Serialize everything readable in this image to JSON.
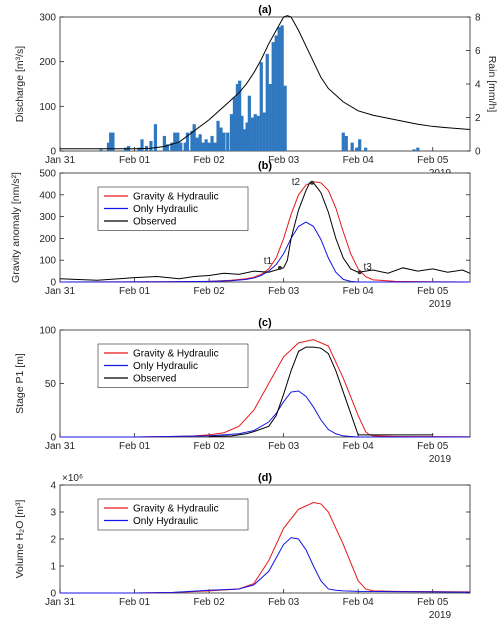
{
  "chart_data": [
    {
      "type": "bar+line",
      "title": "(a)",
      "ylabel": "Discharge [m³/s]",
      "ylabel_right": "Rain [mm/h]",
      "ylim": [
        0,
        300
      ],
      "ylim_right": [
        0,
        8
      ],
      "yticks": [
        0,
        100,
        200,
        300
      ],
      "yticks_right": [
        0,
        2,
        4,
        6,
        8
      ],
      "xlim": [
        0,
        5.5
      ],
      "xtick_labels": [
        "Jan 31",
        "Feb 01",
        "Feb 02",
        "Feb 03",
        "Feb 04",
        "Feb 05"
      ],
      "year_label": "2019",
      "bars_color": "#2f78c0",
      "line_color": "#000000",
      "rain_bars": {
        "x": [
          0.55,
          0.65,
          0.68,
          0.71,
          0.88,
          0.92,
          1.06,
          1.1,
          1.16,
          1.22,
          1.28,
          1.4,
          1.44,
          1.5,
          1.54,
          1.58,
          1.62,
          1.68,
          1.71,
          1.77,
          1.8,
          1.84,
          1.88,
          1.92,
          1.96,
          2.0,
          2.04,
          2.08,
          2.12,
          2.16,
          2.2,
          2.25,
          2.3,
          2.34,
          2.38,
          2.41,
          2.44,
          2.48,
          2.51,
          2.54,
          2.58,
          2.62,
          2.66,
          2.7,
          2.74,
          2.78,
          2.82,
          2.86,
          2.9,
          2.94,
          2.98,
          3.02,
          3.8,
          3.84,
          3.92,
          3.98,
          4.02,
          4.1,
          4.75,
          4.8
        ],
        "values": [
          0.1,
          0.5,
          1.1,
          1.1,
          0.2,
          0.3,
          0.2,
          0.7,
          0.3,
          0.6,
          1.6,
          0.9,
          0.4,
          0.5,
          1.1,
          1.1,
          0.5,
          0.5,
          1.1,
          1.2,
          1.6,
          0.8,
          1.0,
          0.5,
          0.7,
          0.5,
          0.9,
          0.5,
          1.8,
          1.4,
          1.1,
          1.1,
          2.2,
          3.2,
          4.0,
          4.2,
          2.1,
          1.3,
          1.7,
          3.3,
          2.0,
          2.2,
          2.1,
          5.3,
          2.3,
          5.8,
          4.0,
          6.5,
          6.9,
          7.4,
          7.5,
          3.9,
          1.1,
          0.9,
          0.5,
          0.2,
          0.7,
          0.2,
          0.1,
          0.2
        ]
      },
      "discharge_line": {
        "x": [
          0,
          0.5,
          1.0,
          1.2,
          1.4,
          1.6,
          1.8,
          2.0,
          2.2,
          2.4,
          2.5,
          2.6,
          2.7,
          2.8,
          2.9,
          3.0,
          3.05,
          3.1,
          3.2,
          3.3,
          3.4,
          3.5,
          3.6,
          3.8,
          4.0,
          4.2,
          4.5,
          4.8,
          5.0,
          5.2,
          5.5
        ],
        "values": [
          5,
          5,
          5,
          6,
          10,
          20,
          45,
          70,
          100,
          130,
          150,
          175,
          205,
          240,
          270,
          300,
          303,
          300,
          270,
          235,
          200,
          165,
          140,
          110,
          90,
          80,
          70,
          60,
          55,
          52,
          48
        ]
      }
    },
    {
      "type": "line",
      "title": "(b)",
      "ylabel": "Gravity anomaly [nm/s²]",
      "ylim": [
        0,
        500
      ],
      "yticks": [
        0,
        100,
        200,
        300,
        400,
        500
      ],
      "xlim": [
        0,
        5.5
      ],
      "xtick_labels": [
        "Jan 31",
        "Feb 01",
        "Feb 02",
        "Feb 03",
        "Feb 04",
        "Feb 05"
      ],
      "year_label": "2019",
      "legend_position": "upper-left",
      "series": [
        {
          "name": "Gravity & Hydraulic",
          "color": "#e8191a",
          "x": [
            0,
            1.5,
            2.0,
            2.3,
            2.5,
            2.6,
            2.7,
            2.8,
            2.9,
            3.0,
            3.1,
            3.2,
            3.3,
            3.4,
            3.5,
            3.6,
            3.7,
            3.8,
            3.9,
            4.0,
            4.1,
            4.2,
            4.5,
            5.0,
            5.5
          ],
          "values": [
            0,
            1,
            3,
            8,
            15,
            22,
            35,
            60,
            110,
            200,
            310,
            400,
            445,
            460,
            455,
            420,
            340,
            230,
            130,
            60,
            25,
            10,
            3,
            1,
            0
          ]
        },
        {
          "name": "Only Hydraulic",
          "color": "#1414e6",
          "x": [
            0,
            1.5,
            2.0,
            2.3,
            2.5,
            2.6,
            2.7,
            2.8,
            2.9,
            3.0,
            3.1,
            3.2,
            3.3,
            3.4,
            3.5,
            3.6,
            3.7,
            3.8,
            3.9,
            4.0,
            5.5
          ],
          "values": [
            0,
            1,
            3,
            6,
            12,
            18,
            30,
            50,
            80,
            130,
            200,
            255,
            275,
            255,
            195,
            110,
            45,
            12,
            3,
            0,
            0
          ]
        },
        {
          "name": "Observed",
          "color": "#000000",
          "x": [
            0,
            0.2,
            0.5,
            1.0,
            1.3,
            1.6,
            1.8,
            2.0,
            2.2,
            2.4,
            2.6,
            2.8,
            2.9,
            3.0,
            3.05,
            3.1,
            3.2,
            3.3,
            3.35,
            3.4,
            3.5,
            3.6,
            3.7,
            3.8,
            3.9,
            4.0,
            4.1,
            4.2,
            4.4,
            4.6,
            4.8,
            5.0,
            5.2,
            5.4,
            5.5
          ],
          "values": [
            15,
            12,
            8,
            20,
            25,
            15,
            25,
            30,
            40,
            35,
            50,
            45,
            55,
            65,
            100,
            200,
            330,
            420,
            455,
            455,
            410,
            320,
            200,
            110,
            60,
            45,
            50,
            55,
            40,
            65,
            50,
            60,
            45,
            55,
            40
          ]
        }
      ],
      "annotations": [
        {
          "label": "t1",
          "x": 2.95,
          "y": 65
        },
        {
          "label": "t2",
          "x": 3.38,
          "y": 455
        },
        {
          "label": "t3",
          "x": 4.02,
          "y": 45
        }
      ]
    },
    {
      "type": "line",
      "title": "(c)",
      "ylabel": "Stage P1 [m]",
      "ylim": [
        0,
        100
      ],
      "yticks": [
        0,
        50,
        100
      ],
      "xlim": [
        0,
        5.5
      ],
      "xtick_labels": [
        "Jan 31",
        "Feb 01",
        "Feb 02",
        "Feb 03",
        "Feb 04",
        "Feb 05"
      ],
      "year_label": "2019",
      "legend_position": "upper-left",
      "series": [
        {
          "name": "Gravity & Hydraulic",
          "color": "#e8191a",
          "x": [
            0,
            1.0,
            1.5,
            1.8,
            2.0,
            2.2,
            2.4,
            2.6,
            2.8,
            3.0,
            3.2,
            3.4,
            3.6,
            3.8,
            4.0,
            4.1,
            4.15,
            4.2,
            4.5,
            5.0,
            5.5
          ],
          "values": [
            0,
            0,
            0.5,
            1,
            2,
            4,
            10,
            25,
            50,
            75,
            88,
            91,
            85,
            55,
            20,
            5,
            2,
            1,
            0.5,
            0.3,
            0.2
          ]
        },
        {
          "name": "Only Hydraulic",
          "color": "#1414e6",
          "x": [
            0,
            1.0,
            2.0,
            2.4,
            2.6,
            2.8,
            2.9,
            3.0,
            3.1,
            3.2,
            3.3,
            3.4,
            3.5,
            3.6,
            3.7,
            3.8,
            3.9,
            4.0,
            5.5
          ],
          "values": [
            0,
            0,
            1,
            3,
            6,
            14,
            22,
            33,
            42,
            43,
            38,
            28,
            16,
            7,
            3,
            1,
            0.5,
            0,
            0
          ]
        },
        {
          "name": "Observed",
          "color": "#000000",
          "x": [
            2.0,
            2.3,
            2.5,
            2.6,
            2.8,
            2.9,
            3.0,
            3.1,
            3.2,
            3.3,
            3.4,
            3.5,
            3.6,
            3.7,
            3.8,
            3.9,
            4.0,
            4.1,
            4.5,
            5.0
          ],
          "values": [
            0.5,
            1,
            3,
            5,
            10,
            20,
            40,
            62,
            80,
            84,
            84,
            83,
            78,
            62,
            42,
            22,
            2,
            2,
            2,
            2
          ]
        }
      ]
    },
    {
      "type": "line",
      "title": "(d)",
      "ylabel": "Volume H₂O [m³]",
      "ylim": [
        0,
        4
      ],
      "yticks": [
        0,
        1,
        2,
        3,
        4
      ],
      "y_multiplier": "×10⁶",
      "xlim": [
        0,
        5.5
      ],
      "xtick_labels": [
        "Jan 31",
        "Feb 01",
        "Feb 02",
        "Feb 03",
        "Feb 04",
        "Feb 05"
      ],
      "year_label": "2019",
      "legend_position": "upper-left",
      "series": [
        {
          "name": "Gravity & Hydraulic",
          "color": "#e8191a",
          "x": [
            0,
            1.0,
            1.5,
            2.0,
            2.4,
            2.6,
            2.8,
            3.0,
            3.2,
            3.4,
            3.5,
            3.6,
            3.8,
            4.0,
            4.1,
            4.2,
            4.5,
            5.0,
            5.5
          ],
          "values": [
            0,
            0,
            0.02,
            0.08,
            0.15,
            0.35,
            1.2,
            2.4,
            3.1,
            3.35,
            3.3,
            3.0,
            1.8,
            0.45,
            0.15,
            0.08,
            0.06,
            0.05,
            0.04
          ]
        },
        {
          "name": "Only Hydraulic",
          "color": "#1414e6",
          "x": [
            0,
            1.0,
            1.5,
            2.0,
            2.4,
            2.6,
            2.8,
            2.9,
            3.0,
            3.1,
            3.2,
            3.3,
            3.4,
            3.5,
            3.6,
            3.7,
            3.8,
            4.0,
            4.5,
            5.0,
            5.5
          ],
          "values": [
            0,
            0,
            0.02,
            0.1,
            0.15,
            0.3,
            0.8,
            1.3,
            1.8,
            2.05,
            2.0,
            1.6,
            1.0,
            0.45,
            0.15,
            0.1,
            0.08,
            0.06,
            0.05,
            0.04,
            0.03
          ]
        }
      ]
    }
  ]
}
